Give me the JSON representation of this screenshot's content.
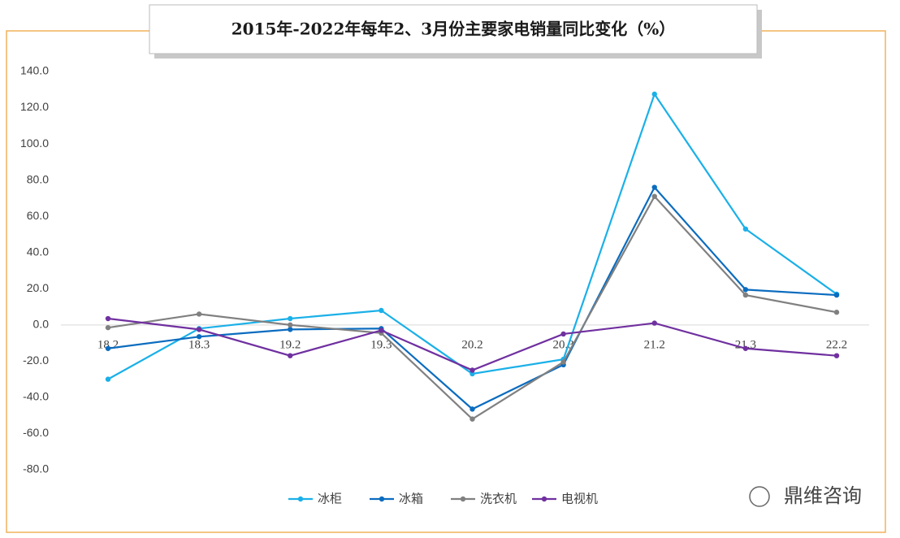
{
  "chart_data": {
    "type": "line",
    "title": "2015年-2022年每年2、3月份主要家电销量同比变化（%）",
    "categories": [
      "18.2",
      "18.3",
      "19.2",
      "19.3",
      "20.2",
      "20.3",
      "21.2",
      "21.3",
      "22.2"
    ],
    "series": [
      {
        "name": "冰柜",
        "color": "#1ab0e8",
        "values": [
          -30,
          -2,
          3.5,
          8,
          -27,
          -19,
          127.5,
          53,
          17
        ]
      },
      {
        "name": "冰箱",
        "color": "#0b6cbf",
        "values": [
          -13,
          -6.5,
          -2.5,
          -2,
          -46.5,
          -22,
          76,
          19.5,
          16.5
        ]
      },
      {
        "name": "洗衣机",
        "color": "#808080",
        "values": [
          -1.5,
          6,
          0,
          -4.5,
          -52,
          -20.5,
          71,
          16.5,
          7
        ]
      },
      {
        "name": "电视机",
        "color": "#7030a0",
        "values": [
          3.5,
          -2.5,
          -17,
          -3,
          -25,
          -5,
          1,
          -13,
          -17
        ]
      }
    ],
    "ylim": [
      -80,
      140
    ],
    "yticks": [
      {
        "value": -80,
        "label": "-80.0"
      },
      {
        "value": -60,
        "label": "-60.0"
      },
      {
        "value": -40,
        "label": "-40.0"
      },
      {
        "value": -20,
        "label": "-20.0"
      },
      {
        "value": 0,
        "label": "0.0"
      },
      {
        "value": 20,
        "label": "20.0"
      },
      {
        "value": 40,
        "label": "40.0"
      },
      {
        "value": 60,
        "label": "60.0"
      },
      {
        "value": 80,
        "label": "80.0"
      },
      {
        "value": 100,
        "label": "100.0"
      },
      {
        "value": 120,
        "label": "120.0"
      },
      {
        "value": 140,
        "label": "140.0"
      }
    ],
    "grid": false,
    "legend": "bottom",
    "watermark": "鼎维咨询"
  }
}
